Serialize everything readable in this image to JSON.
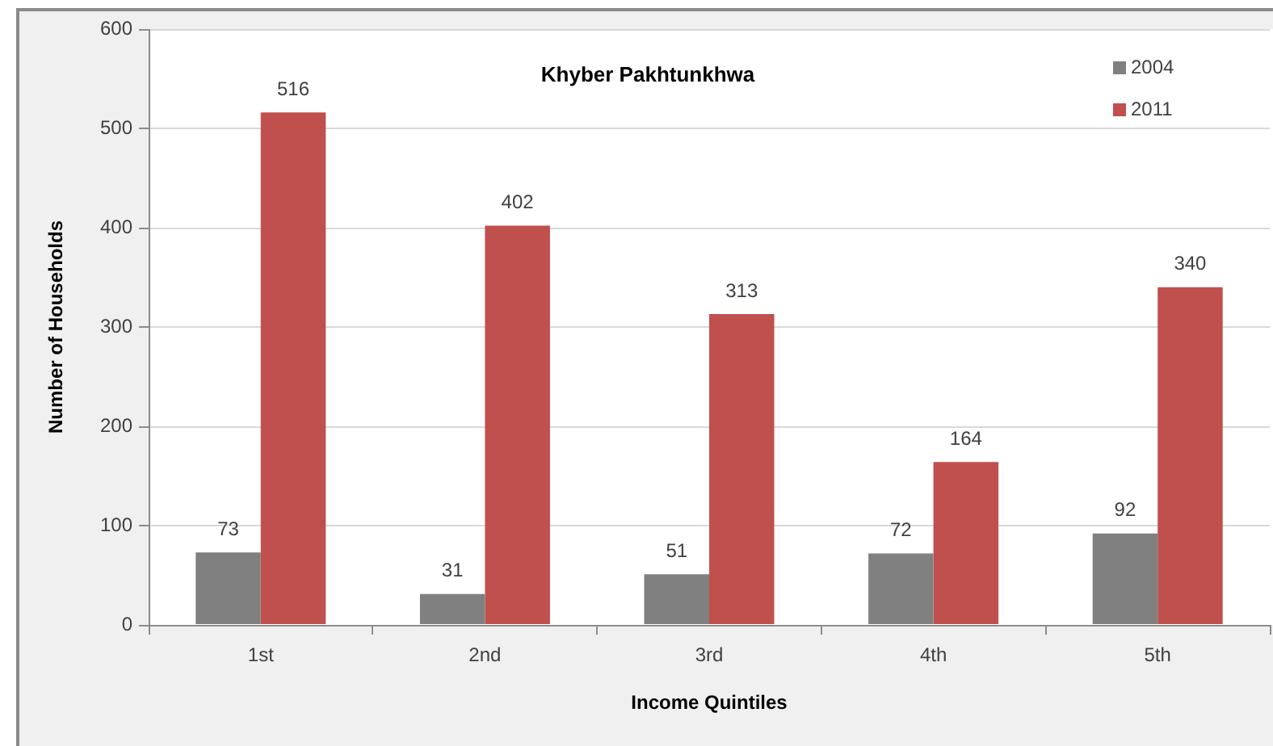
{
  "chart_data": {
    "type": "bar",
    "title": "Khyber Pakhtunkhwa",
    "xlabel": "Income Quintiles",
    "ylabel": "Number of Households",
    "categories": [
      "1st",
      "2nd",
      "3rd",
      "4th",
      "5th"
    ],
    "series": [
      {
        "name": "2004",
        "color": "#808080",
        "values": [
          73,
          31,
          51,
          72,
          92
        ]
      },
      {
        "name": "2011",
        "color": "#c0504d",
        "values": [
          516,
          402,
          313,
          164,
          340
        ]
      }
    ],
    "ylim": [
      0,
      600
    ],
    "yticks": [
      0,
      100,
      200,
      300,
      400,
      500,
      600
    ],
    "grid": "y",
    "legend": "top right",
    "data_labels": true
  }
}
